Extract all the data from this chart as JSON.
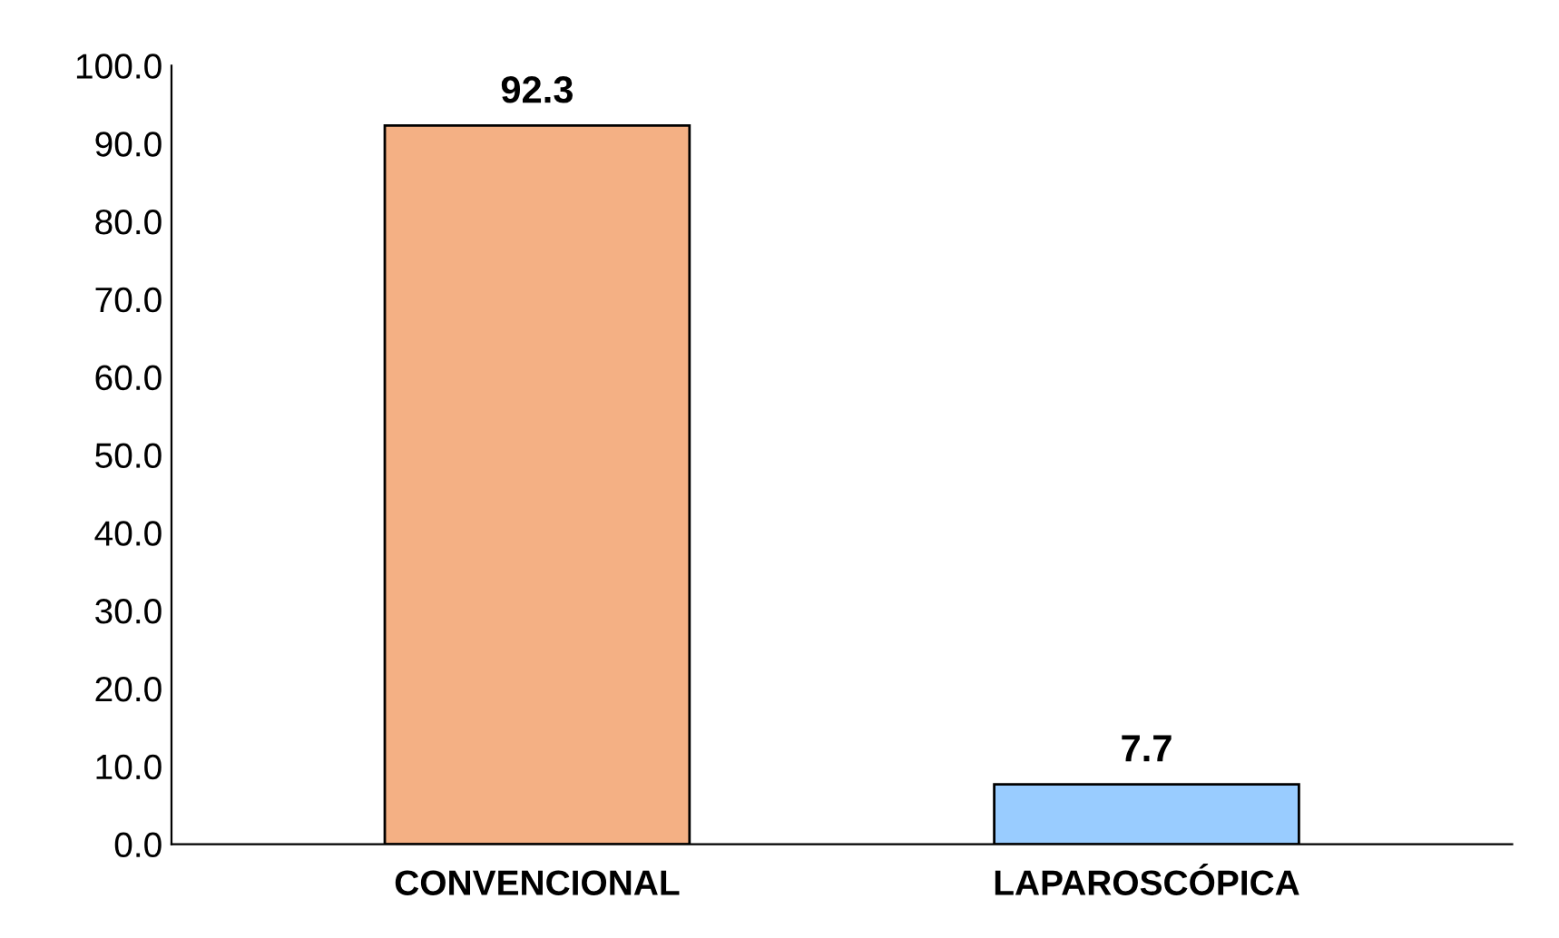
{
  "chart_data": {
    "type": "bar",
    "categories": [
      "CONVENCIONAL",
      "LAPAROSCÓPICA"
    ],
    "values": [
      92.3,
      7.7
    ],
    "colors": [
      "#f4b084",
      "#99ccff"
    ],
    "ylim": [
      0,
      100
    ],
    "yticks": [
      {
        "value": 0,
        "label": "0.0"
      },
      {
        "value": 10,
        "label": "10.0"
      },
      {
        "value": 20,
        "label": "20.0"
      },
      {
        "value": 30,
        "label": "30.0"
      },
      {
        "value": 40,
        "label": "40.0"
      },
      {
        "value": 50,
        "label": "50.0"
      },
      {
        "value": 60,
        "label": "60.0"
      },
      {
        "value": 70,
        "label": "70.0"
      },
      {
        "value": 80,
        "label": "80.0"
      },
      {
        "value": 90,
        "label": "90.0"
      },
      {
        "value": 100,
        "label": "100.0"
      }
    ],
    "data_labels": true,
    "grid": false,
    "legend": false
  }
}
